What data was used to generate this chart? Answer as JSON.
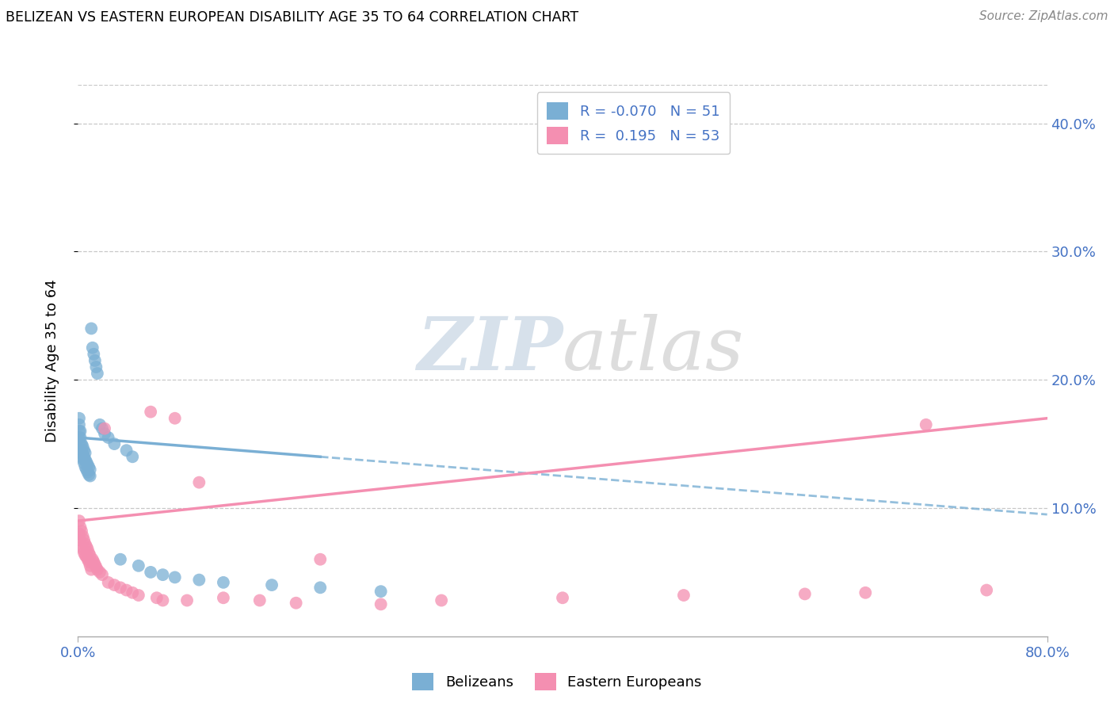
{
  "title": "BELIZEAN VS EASTERN EUROPEAN DISABILITY AGE 35 TO 64 CORRELATION CHART",
  "source": "Source: ZipAtlas.com",
  "ylabel": "Disability Age 35 to 64",
  "ytick_vals": [
    0.1,
    0.2,
    0.3,
    0.4
  ],
  "xlim": [
    0.0,
    0.8
  ],
  "ylim": [
    0.0,
    0.43
  ],
  "belizean_R": -0.07,
  "belizean_N": 51,
  "eastern_R": 0.195,
  "eastern_N": 53,
  "belizean_color": "#7aafd4",
  "eastern_color": "#f48fb1",
  "watermark_zip": "ZIP",
  "watermark_atlas": "atlas",
  "belizean_x": [
    0.001,
    0.001,
    0.001,
    0.001,
    0.002,
    0.002,
    0.002,
    0.002,
    0.003,
    0.003,
    0.003,
    0.004,
    0.004,
    0.004,
    0.005,
    0.005,
    0.005,
    0.006,
    0.006,
    0.006,
    0.007,
    0.007,
    0.008,
    0.008,
    0.009,
    0.009,
    0.01,
    0.01,
    0.011,
    0.012,
    0.013,
    0.014,
    0.015,
    0.016,
    0.018,
    0.02,
    0.022,
    0.025,
    0.03,
    0.035,
    0.04,
    0.045,
    0.05,
    0.06,
    0.07,
    0.08,
    0.1,
    0.12,
    0.16,
    0.2,
    0.25
  ],
  "belizean_y": [
    0.155,
    0.16,
    0.165,
    0.17,
    0.145,
    0.15,
    0.155,
    0.16,
    0.14,
    0.145,
    0.15,
    0.138,
    0.142,
    0.148,
    0.135,
    0.14,
    0.145,
    0.132,
    0.138,
    0.143,
    0.13,
    0.136,
    0.128,
    0.134,
    0.126,
    0.132,
    0.125,
    0.13,
    0.24,
    0.225,
    0.22,
    0.215,
    0.21,
    0.205,
    0.165,
    0.162,
    0.158,
    0.155,
    0.15,
    0.06,
    0.145,
    0.14,
    0.055,
    0.05,
    0.048,
    0.046,
    0.044,
    0.042,
    0.04,
    0.038,
    0.035
  ],
  "eastern_x": [
    0.001,
    0.001,
    0.002,
    0.002,
    0.003,
    0.003,
    0.004,
    0.004,
    0.005,
    0.005,
    0.006,
    0.006,
    0.007,
    0.007,
    0.008,
    0.008,
    0.009,
    0.009,
    0.01,
    0.01,
    0.011,
    0.012,
    0.013,
    0.014,
    0.015,
    0.016,
    0.018,
    0.02,
    0.022,
    0.025,
    0.03,
    0.035,
    0.04,
    0.045,
    0.05,
    0.06,
    0.065,
    0.07,
    0.08,
    0.09,
    0.1,
    0.12,
    0.15,
    0.18,
    0.2,
    0.25,
    0.3,
    0.4,
    0.5,
    0.6,
    0.65,
    0.7,
    0.75
  ],
  "eastern_y": [
    0.08,
    0.09,
    0.075,
    0.085,
    0.07,
    0.082,
    0.068,
    0.078,
    0.065,
    0.075,
    0.063,
    0.072,
    0.062,
    0.07,
    0.06,
    0.068,
    0.058,
    0.065,
    0.055,
    0.063,
    0.052,
    0.06,
    0.058,
    0.056,
    0.054,
    0.052,
    0.05,
    0.048,
    0.162,
    0.042,
    0.04,
    0.038,
    0.036,
    0.034,
    0.032,
    0.175,
    0.03,
    0.028,
    0.17,
    0.028,
    0.12,
    0.03,
    0.028,
    0.026,
    0.06,
    0.025,
    0.028,
    0.03,
    0.032,
    0.033,
    0.034,
    0.165,
    0.036
  ],
  "bel_trend_x0": 0.0,
  "bel_trend_x1": 0.8,
  "bel_trend_y0": 0.155,
  "bel_trend_y1": 0.095,
  "eas_trend_x0": 0.0,
  "eas_trend_x1": 0.8,
  "eas_trend_y0": 0.09,
  "eas_trend_y1": 0.17
}
